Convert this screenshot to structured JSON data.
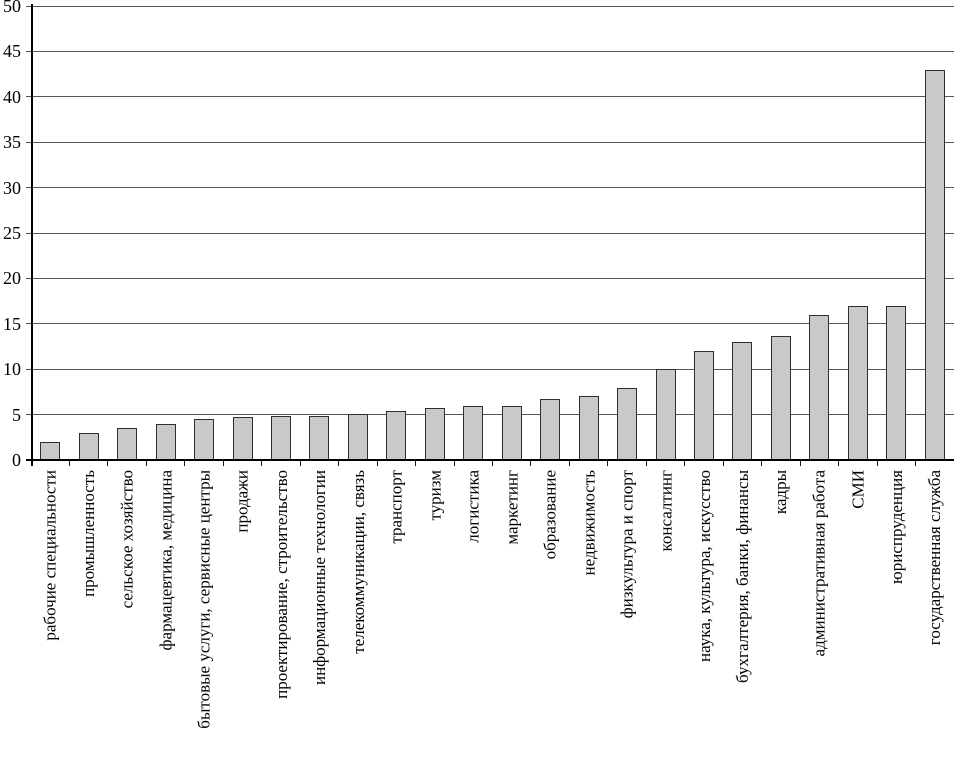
{
  "chart_data": {
    "type": "bar",
    "title": "",
    "xlabel": "",
    "ylabel": "",
    "categories": [
      "рабочие специальности",
      "промышленность",
      "сельское хозяйство",
      "фармацевтика, медицина",
      "бытовые услуги, сервисные центры",
      "продажи",
      "проектирование, строительство",
      "информационные технологии",
      "телекоммуникации, связь",
      "транспорт",
      "туризм",
      "логистика",
      "маркетинг",
      "образование",
      "недвижимость",
      "физкультура и спорт",
      "консалтинг",
      "наука, культура, искусство",
      "бухгалтерия, банки, финансы",
      "кадры",
      "административная работа",
      "СМИ",
      "юриспруденция",
      "государственная служба"
    ],
    "values": [
      2,
      3,
      3.5,
      4,
      4.5,
      4.7,
      4.8,
      4.9,
      5.1,
      5.4,
      5.7,
      5.9,
      6,
      6.7,
      7,
      7.9,
      10,
      12,
      13,
      13.7,
      16,
      17,
      17,
      43
    ],
    "ylim": [
      0,
      50
    ],
    "yticks": [
      0,
      5,
      10,
      15,
      20,
      25,
      30,
      35,
      40,
      45,
      50
    ],
    "grid": true,
    "legend": false,
    "x_label_rotation_deg": -90,
    "colors": {
      "bar_fill": "#c9c9c9",
      "bar_border": "#2f2f2f",
      "gridline": "#565656",
      "axis": "#000000",
      "background": "#ffffff",
      "text": "#000000"
    }
  }
}
